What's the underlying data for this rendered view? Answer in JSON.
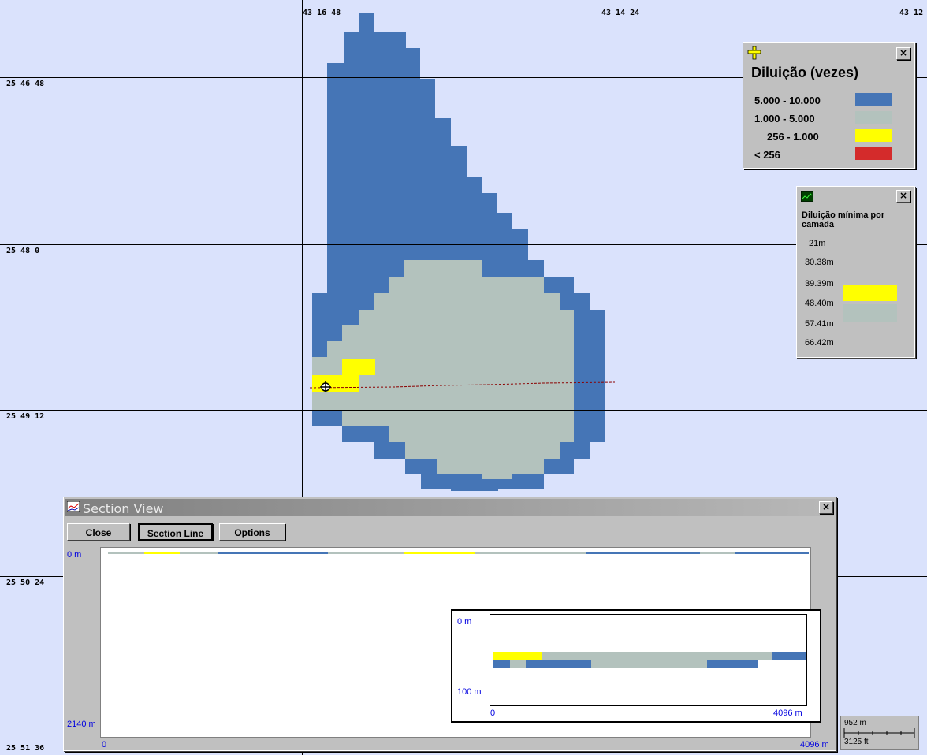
{
  "map": {
    "longitude_labels": [
      "43 16 48",
      "43 14 24",
      "43 12"
    ],
    "latitude_labels": [
      "25 46 48",
      "25 48 0",
      "25 49 12",
      "25 50 24",
      "25 51 36"
    ],
    "colors": {
      "background": "#dae2fc",
      "dilution_5000_10000": "#4575b6",
      "dilution_1000_5000": "#b3c2bd",
      "dilution_256_1000": "#ffff00",
      "dilution_lt_256": "#d42b2b",
      "section_line": "#8b0000"
    }
  },
  "dilution_legend": {
    "title": "Diluição (vezes)",
    "close_label": "×",
    "icon": "crosshair-legend-icon",
    "items": [
      {
        "label": "5.000 - 10.000",
        "color": "#4575b6"
      },
      {
        "label": "1.000 - 5.000",
        "color": "#b3c2bd"
      },
      {
        "label": "256 - 1.000",
        "color": "#ffff00"
      },
      {
        "label": "< 256",
        "color": "#d42b2b"
      }
    ]
  },
  "layer_legend": {
    "title": "Diluição mínima por camada",
    "close_label": "×",
    "icon": "layer-chart-icon",
    "depths": [
      "21m",
      "30.38m",
      "39.39m",
      "48.40m",
      "57.41m",
      "66.42m"
    ],
    "colors": [
      "#ffff00",
      "#b3c2bd"
    ]
  },
  "section_view": {
    "title": "Section View",
    "close_label": "×",
    "buttons": {
      "close": "Close",
      "section_line": "Section Line",
      "options": "Options"
    },
    "y_top": "0 m",
    "y_bottom": "2140 m",
    "x_left": "0",
    "x_right": "4096 m",
    "inset": {
      "y_top": "0 m",
      "y_bottom": "100 m",
      "x_left": "0",
      "x_right": "4096 m"
    }
  },
  "scale_bar": {
    "metric": "952 m",
    "imperial": "3125 ft"
  }
}
